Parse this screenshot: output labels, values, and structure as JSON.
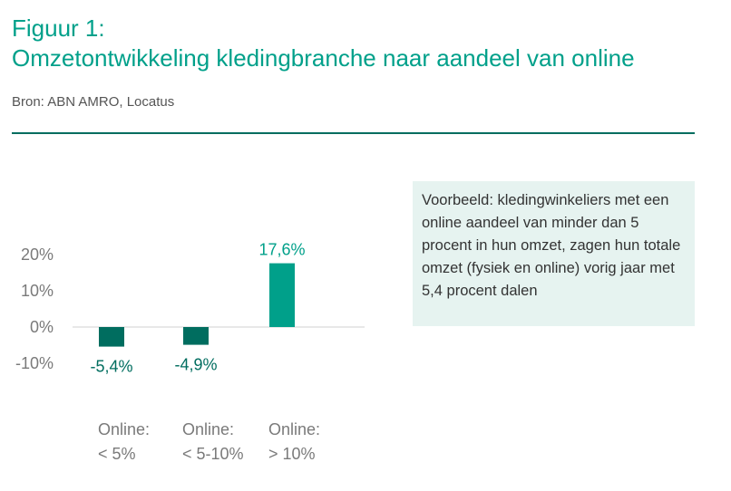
{
  "figure": {
    "title_line1": "Figuur 1:",
    "title_line2": "Omzetontwikkeling kledingbranche naar aandeel van online",
    "source": "Bron: ABN AMRO, Locatus"
  },
  "callout": {
    "text": "Voorbeeld: kledingwinkeliers met een online aandeel van minder dan 5 procent in hun omzet, zagen hun totale omzet (fysiek en online) vorig jaar met 5,4 procent dalen"
  },
  "chart_data": {
    "type": "bar",
    "categories": [
      [
        "Online:",
        "< 5%"
      ],
      [
        "Online:",
        "< 5-10%"
      ],
      [
        "Online:",
        "> 10%"
      ]
    ],
    "values": [
      -5.4,
      -4.9,
      17.6
    ],
    "data_labels": [
      "-5,4%",
      "-4,9%",
      "17,6%"
    ],
    "bar_colors": [
      "#006d5f",
      "#006d5f",
      "#00a08a"
    ],
    "label_colors": [
      "#006d5f",
      "#006d5f",
      "#00a08a"
    ],
    "yticks": [
      20,
      10,
      0,
      -10
    ],
    "ytick_labels": [
      "20%",
      "10%",
      "0%",
      "-10%"
    ],
    "ylim": [
      -10,
      20
    ],
    "grid": false
  }
}
